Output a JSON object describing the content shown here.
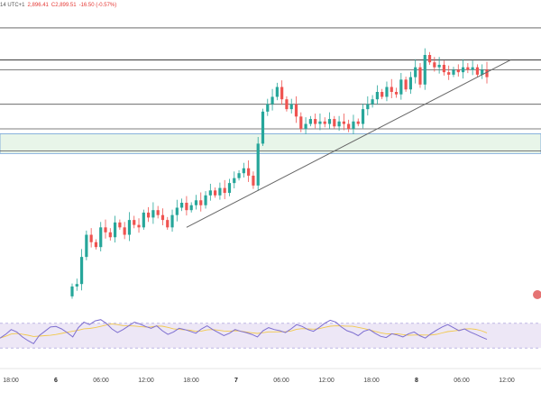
{
  "header": {
    "interval": "14 UTC+1",
    "low": "2,896.41",
    "close": "C2,899.51",
    "change": "-16.50 (-0.57%)"
  },
  "colors": {
    "up": "#26a69a",
    "down": "#ef5350",
    "hline": "#555555",
    "zone_fill": "#e8f5e9",
    "zone_border": "#6fa0d8",
    "rsi_line": "#7e6fd0",
    "rsi_ma": "#f2c94c",
    "rsi_band": "#ede7f6",
    "indicator_marker": "#e57373",
    "trendline": "#666666"
  },
  "chart_data": {
    "type": "candlestick",
    "x_ticks": [
      "18:00",
      "6",
      "06:00",
      "12:00",
      "18:00",
      "7",
      "06:00",
      "12:00",
      "18:00",
      "8",
      "06:00",
      "12:00"
    ],
    "day_ticks": [
      "6",
      "7",
      "8"
    ],
    "price_range": [
      2820,
      2940
    ],
    "candles_close": [
      2831,
      2832,
      2843,
      2852,
      2849,
      2847,
      2855,
      2853,
      2851,
      2857,
      2855,
      2852,
      2858,
      2856,
      2855,
      2861,
      2859,
      2862,
      2860,
      2858,
      2855,
      2860,
      2863,
      2865,
      2862,
      2864,
      2866,
      2864,
      2868,
      2870,
      2868,
      2871,
      2869,
      2873,
      2875,
      2877,
      2879,
      2876,
      2872,
      2889,
      2902,
      2905,
      2908,
      2912,
      2907,
      2903,
      2905,
      2900,
      2895,
      2897,
      2899,
      2897,
      2898,
      2897,
      2899,
      2896,
      2898,
      2897,
      2895,
      2898,
      2897,
      2903,
      2905,
      2907,
      2910,
      2908,
      2912,
      2910,
      2909,
      2915,
      2911,
      2916,
      2920,
      2913,
      2925,
      2922,
      2920,
      2921,
      2918,
      2917,
      2919,
      2918,
      2920,
      2919,
      2920,
      2917,
      2919,
      2916
    ],
    "horizontal_levels": [
      2936,
      2923,
      2919,
      2905,
      2895,
      2886
    ],
    "support_zone": [
      2885,
      2893
    ],
    "trendline": {
      "from": [
        24,
        2855
      ],
      "to": [
        92,
        2923
      ]
    },
    "rsi": {
      "range": [
        20,
        80
      ],
      "upper": 70,
      "lower": 30,
      "values": [
        46,
        52,
        60,
        56,
        48,
        42,
        37,
        50,
        57,
        64,
        65,
        61,
        55,
        48,
        63,
        72,
        68,
        74,
        76,
        70,
        61,
        55,
        60,
        66,
        72,
        69,
        65,
        62,
        66,
        58,
        52,
        56,
        62,
        60,
        57,
        54,
        61,
        66,
        60,
        55,
        50,
        54,
        60,
        57,
        55,
        52,
        48,
        58,
        63,
        60,
        58,
        55,
        61,
        68,
        65,
        60,
        57,
        63,
        70,
        75,
        72,
        64,
        58,
        55,
        50,
        57,
        60,
        54,
        49,
        47,
        53,
        51,
        48,
        53,
        56,
        50,
        46,
        53,
        59,
        64,
        68,
        63,
        58,
        61,
        56,
        52,
        48,
        44
      ]
    }
  }
}
